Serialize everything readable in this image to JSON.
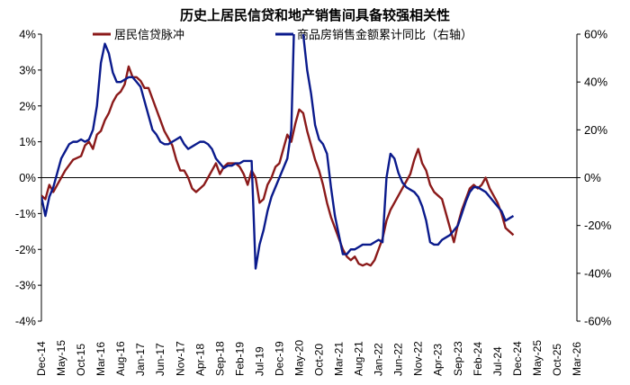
{
  "chart_data": {
    "type": "line",
    "title": "历史上居民信贷和地产销售间具备较强相关性",
    "x_tick_labels": [
      "Dec-14",
      "May-15",
      "Oct-15",
      "Mar-16",
      "Aug-16",
      "Jan-17",
      "Jun-17",
      "Nov-17",
      "Apr-18",
      "Sep-18",
      "Feb-19",
      "Jul-19",
      "Dec-19",
      "May-20",
      "Oct-20",
      "Mar-21",
      "Aug-21",
      "Jan-22",
      "Jun-22",
      "Nov-22",
      "Apr-23",
      "Sep-23",
      "Feb-24",
      "Jul-24",
      "Dec-24",
      "May-25",
      "Oct-25",
      "Mar-26"
    ],
    "x_index_range": [
      0,
      135
    ],
    "y_left": {
      "ticks": [
        4,
        3,
        2,
        1,
        0,
        -1,
        -2,
        -3,
        -4
      ],
      "tick_labels": [
        "4%",
        "3%",
        "2%",
        "1%",
        "0%",
        "-1%",
        "-2%",
        "-3%",
        "-4%"
      ],
      "ylim": [
        -4,
        4
      ]
    },
    "y_right": {
      "ticks": [
        60,
        40,
        20,
        0,
        -20,
        -40,
        -60
      ],
      "tick_labels": [
        "60%",
        "40%",
        "20%",
        "0%",
        "-20%",
        "-40%",
        "-60%"
      ],
      "ylim": [
        -60,
        60
      ]
    },
    "legend_position": "top",
    "series": [
      {
        "name": "居民信贷脉冲",
        "axis": "left",
        "color": "#8B1A1A",
        "points": [
          [
            0,
            -0.5
          ],
          [
            1,
            -0.6
          ],
          [
            2,
            -0.2
          ],
          [
            3,
            -0.4
          ],
          [
            4,
            -0.2
          ],
          [
            5,
            0
          ],
          [
            6,
            0.2
          ],
          [
            7,
            0.35
          ],
          [
            8,
            0.5
          ],
          [
            9,
            0.55
          ],
          [
            10,
            0.6
          ],
          [
            11,
            0.9
          ],
          [
            12,
            1
          ],
          [
            13,
            0.8
          ],
          [
            14,
            1.2
          ],
          [
            15,
            1.3
          ],
          [
            16,
            1.6
          ],
          [
            17,
            1.8
          ],
          [
            18,
            2.1
          ],
          [
            19,
            2.3
          ],
          [
            20,
            2.4
          ],
          [
            21,
            2.6
          ],
          [
            22,
            3.1
          ],
          [
            23,
            2.8
          ],
          [
            24,
            2.8
          ],
          [
            25,
            2.7
          ],
          [
            26,
            2.5
          ],
          [
            27,
            2.5
          ],
          [
            28,
            2.2
          ],
          [
            29,
            1.9
          ],
          [
            30,
            1.6
          ],
          [
            31,
            1.3
          ],
          [
            32,
            1.1
          ],
          [
            33,
            0.9
          ],
          [
            34,
            0.5
          ],
          [
            35,
            0.2
          ],
          [
            36,
            0.2
          ],
          [
            37,
            0
          ],
          [
            38,
            -0.3
          ],
          [
            39,
            -0.4
          ],
          [
            40,
            -0.3
          ],
          [
            41,
            -0.2
          ],
          [
            42,
            0
          ],
          [
            43,
            0.2
          ],
          [
            44,
            0.4
          ],
          [
            45,
            0.1
          ],
          [
            46,
            0.3
          ],
          [
            47,
            0.4
          ],
          [
            48,
            0.4
          ],
          [
            49,
            0.4
          ],
          [
            50,
            0.3
          ],
          [
            51,
            0.1
          ],
          [
            52,
            -0.2
          ],
          [
            53,
            0.2
          ],
          [
            54,
            0
          ],
          [
            55,
            -0.7
          ],
          [
            56,
            -0.6
          ],
          [
            57,
            -0.2
          ],
          [
            58,
            0
          ],
          [
            59,
            0.3
          ],
          [
            60,
            0.4
          ],
          [
            61,
            0.8
          ],
          [
            62,
            1.2
          ],
          [
            63,
            1
          ],
          [
            64,
            1.5
          ],
          [
            65,
            1.9
          ],
          [
            66,
            1.8
          ],
          [
            67,
            1.3
          ],
          [
            68,
            0.9
          ],
          [
            69,
            0.5
          ],
          [
            70,
            0.2
          ],
          [
            71,
            -0.2
          ],
          [
            72,
            -0.7
          ],
          [
            73,
            -1.1
          ],
          [
            74,
            -1.4
          ],
          [
            75,
            -1.7
          ],
          [
            76,
            -2
          ],
          [
            77,
            -2.2
          ],
          [
            78,
            -2.3
          ],
          [
            79,
            -2.2
          ],
          [
            80,
            -2.4
          ],
          [
            81,
            -2.45
          ],
          [
            82,
            -2.4
          ],
          [
            83,
            -2.45
          ],
          [
            84,
            -2.3
          ],
          [
            85,
            -2
          ],
          [
            86,
            -1.7
          ],
          [
            87,
            -1.2
          ],
          [
            88,
            -0.9
          ],
          [
            89,
            -0.7
          ],
          [
            90,
            -0.5
          ],
          [
            91,
            -0.3
          ],
          [
            92,
            -0.1
          ],
          [
            93,
            0.1
          ],
          [
            94,
            0.5
          ],
          [
            95,
            0.8
          ],
          [
            96,
            0.4
          ],
          [
            97,
            0.2
          ],
          [
            98,
            -0.2
          ],
          [
            99,
            -0.4
          ],
          [
            100,
            -0.5
          ],
          [
            101,
            -0.6
          ],
          [
            102,
            -1
          ],
          [
            103,
            -1.4
          ],
          [
            104,
            -1.8
          ],
          [
            105,
            -1.3
          ],
          [
            106,
            -0.9
          ],
          [
            107,
            -0.6
          ],
          [
            108,
            -0.3
          ],
          [
            109,
            -0.2
          ],
          [
            110,
            -0.3
          ],
          [
            111,
            -0.2
          ],
          [
            112,
            0
          ],
          [
            113,
            -0.3
          ],
          [
            114,
            -0.5
          ],
          [
            115,
            -0.7
          ],
          [
            116,
            -1
          ],
          [
            117,
            -1.4
          ],
          [
            118,
            -1.5
          ],
          [
            119,
            -1.6
          ]
        ]
      },
      {
        "name": "商品房销售金额累计同比（右轴）",
        "axis": "right",
        "color": "#0A1A8C",
        "points": [
          [
            0,
            -8
          ],
          [
            1,
            -16
          ],
          [
            2,
            -8
          ],
          [
            3,
            -4
          ],
          [
            4,
            2
          ],
          [
            5,
            8
          ],
          [
            6,
            11
          ],
          [
            7,
            14
          ],
          [
            8,
            15
          ],
          [
            9,
            15
          ],
          [
            10,
            16
          ],
          [
            11,
            15
          ],
          [
            12,
            16
          ],
          [
            13,
            20
          ],
          [
            14,
            30
          ],
          [
            15,
            48
          ],
          [
            16,
            56
          ],
          [
            17,
            52
          ],
          [
            18,
            44
          ],
          [
            19,
            40
          ],
          [
            20,
            40
          ],
          [
            21,
            41
          ],
          [
            22,
            42
          ],
          [
            23,
            42
          ],
          [
            24,
            40
          ],
          [
            25,
            38
          ],
          [
            26,
            32
          ],
          [
            27,
            26
          ],
          [
            28,
            20
          ],
          [
            29,
            18
          ],
          [
            30,
            15
          ],
          [
            31,
            14
          ],
          [
            32,
            14
          ],
          [
            33,
            15
          ],
          [
            34,
            16
          ],
          [
            35,
            17
          ],
          [
            36,
            14
          ],
          [
            37,
            12
          ],
          [
            38,
            13
          ],
          [
            39,
            14
          ],
          [
            40,
            15
          ],
          [
            41,
            15
          ],
          [
            42,
            14
          ],
          [
            43,
            12
          ],
          [
            44,
            8
          ],
          [
            45,
            6
          ],
          [
            46,
            4
          ],
          [
            47,
            5
          ],
          [
            48,
            5
          ],
          [
            49,
            6
          ],
          [
            50,
            6
          ],
          [
            51,
            7
          ],
          [
            52,
            7
          ],
          [
            53,
            7
          ],
          [
            54,
            -38
          ],
          [
            55,
            -28
          ],
          [
            56,
            -22
          ],
          [
            57,
            -14
          ],
          [
            58,
            -8
          ],
          [
            59,
            -4
          ],
          [
            60,
            0
          ],
          [
            61,
            4
          ],
          [
            62,
            8
          ],
          [
            63,
            20
          ],
          [
            64,
            82
          ],
          [
            65,
            75
          ],
          [
            66,
            60
          ],
          [
            67,
            45
          ],
          [
            68,
            35
          ],
          [
            69,
            22
          ],
          [
            70,
            16
          ],
          [
            71,
            14
          ],
          [
            72,
            10
          ],
          [
            73,
            -4
          ],
          [
            74,
            -16
          ],
          [
            75,
            -24
          ],
          [
            76,
            -32
          ],
          [
            77,
            -32
          ],
          [
            78,
            -30
          ],
          [
            79,
            -30
          ],
          [
            80,
            -29
          ],
          [
            81,
            -28
          ],
          [
            82,
            -28
          ],
          [
            83,
            -28
          ],
          [
            84,
            -27
          ],
          [
            85,
            -26
          ],
          [
            86,
            -27
          ],
          [
            87,
            0
          ],
          [
            88,
            10
          ],
          [
            89,
            8
          ],
          [
            90,
            2
          ],
          [
            91,
            -2
          ],
          [
            92,
            -4
          ],
          [
            93,
            -5
          ],
          [
            94,
            -6
          ],
          [
            95,
            -8
          ],
          [
            96,
            -12
          ],
          [
            97,
            -18
          ],
          [
            98,
            -27
          ],
          [
            99,
            -28
          ],
          [
            100,
            -28
          ],
          [
            101,
            -26
          ],
          [
            102,
            -25
          ],
          [
            103,
            -24
          ],
          [
            104,
            -22
          ],
          [
            105,
            -20
          ],
          [
            106,
            -15
          ],
          [
            107,
            -10
          ],
          [
            108,
            -6
          ],
          [
            109,
            -4
          ],
          [
            110,
            -4
          ],
          [
            111,
            -5
          ],
          [
            112,
            -6
          ],
          [
            113,
            -8
          ],
          [
            114,
            -10
          ],
          [
            115,
            -12
          ],
          [
            116,
            -14
          ],
          [
            117,
            -18
          ],
          [
            118,
            -17
          ],
          [
            119,
            -16
          ]
        ]
      }
    ]
  }
}
